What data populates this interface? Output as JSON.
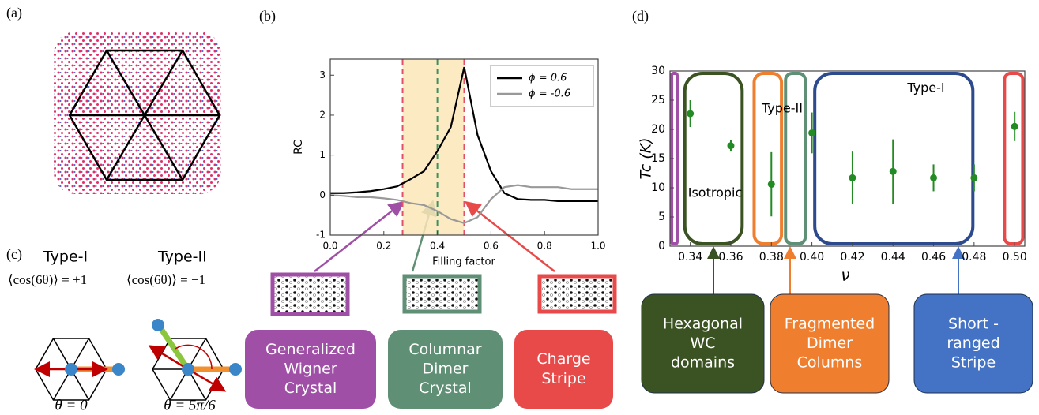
{
  "panel_labels": [
    "(a)",
    "(b)",
    "(c)",
    "(d)"
  ],
  "panel_c": {
    "type_1": "Type-I",
    "type_2": "Type-II",
    "eq_1": "⟨cos(6θ)⟩ = +1",
    "eq_2": "⟨cos(6θ)⟩ = −1",
    "theta_1": "θ = 0",
    "theta_2": "θ = 5π/6"
  },
  "phase_boxes_b": [
    {
      "lines": [
        "Generalized",
        "Wigner",
        "Crystal"
      ],
      "color": "#a04fa6"
    },
    {
      "lines": [
        "Columnar",
        "Dimer",
        "Crystal"
      ],
      "color": "#5f8f74"
    },
    {
      "lines": [
        "Charge",
        "Stripe"
      ],
      "color": "#e84a4a"
    }
  ],
  "phase_boxes_d": [
    {
      "lines": [
        "Hexagonal",
        "WC",
        "domains"
      ],
      "color": "#3b5323"
    },
    {
      "lines": [
        "Fragmented",
        "Dimer",
        "Columns"
      ],
      "color": "#ef7f2e"
    },
    {
      "lines": [
        "Short -",
        "ranged",
        "Stripe"
      ],
      "color": "#4472c4"
    }
  ],
  "region_labels": [
    "Isotropic",
    "Type-II",
    "Type-I"
  ],
  "chart_data": [
    {
      "type": "line",
      "xlabel": "Filling factor",
      "ylabel": "RC",
      "x": [
        0,
        0.05,
        0.1,
        0.15,
        0.2,
        0.25,
        0.3,
        0.35,
        0.4,
        0.45,
        0.5,
        0.55,
        0.6,
        0.65,
        0.7,
        0.75,
        0.8,
        0.85,
        0.9,
        0.95,
        1
      ],
      "series": [
        {
          "name": "ϕ = 0.6",
          "color": "#000000",
          "values": [
            0.05,
            0.05,
            0.07,
            0.1,
            0.15,
            0.22,
            0.4,
            0.6,
            1.1,
            1.7,
            3.2,
            1.5,
            0.6,
            0.05,
            -0.1,
            -0.12,
            -0.12,
            -0.15,
            -0.15,
            -0.15,
            -0.15
          ]
        },
        {
          "name": "ϕ = -0.6",
          "color": "#999999",
          "values": [
            0,
            -0.02,
            -0.05,
            -0.05,
            -0.08,
            -0.12,
            -0.2,
            -0.25,
            -0.4,
            -0.6,
            -0.7,
            -0.55,
            -0.1,
            0.2,
            0.25,
            0.2,
            0.2,
            0.2,
            0.15,
            0.15,
            0.15
          ]
        }
      ],
      "xlim": [
        0,
        1
      ],
      "ylim": [
        -1,
        3.4
      ],
      "xticks": [
        {
          "value": 0,
          "label": "0.0"
        },
        0.2,
        0.4,
        0.6,
        0.8,
        {
          "value": 1,
          "label": "1.0"
        }
      ],
      "yticks": [
        -1,
        0,
        1,
        2,
        3
      ],
      "legend": "upper right",
      "highlight": {
        "xrange": [
          0.27,
          0.5
        ],
        "color": "#fbe6b8"
      },
      "markers": [
        {
          "x": 0.27,
          "color": "#e0506a"
        },
        {
          "x": 0.4,
          "color": "#3f8f5f"
        },
        {
          "x": 0.5,
          "color": "#e0506a"
        }
      ]
    },
    {
      "type": "scatter",
      "xlabel": "ν",
      "ylabel": "Tc (K)",
      "color": "#238b23",
      "x": [
        0.34,
        0.36,
        0.38,
        0.4,
        0.42,
        0.44,
        0.46,
        0.48,
        0.5
      ],
      "values": [
        22.7,
        17.2,
        10.6,
        19.4,
        11.7,
        12.8,
        11.7,
        11.7,
        20.5
      ],
      "errors": [
        2.3,
        1,
        5.5,
        3.5,
        4.5,
        5.5,
        2.3,
        2.3,
        2.5
      ],
      "xlim": [
        0.33,
        0.505
      ],
      "ylim": [
        0,
        30
      ],
      "xticks": [
        0.34,
        0.36,
        0.38,
        {
          "value": 0.4,
          "label": "0.40"
        },
        0.42,
        0.44,
        0.46,
        0.48,
        {
          "value": 0.5,
          "label": "0.50"
        }
      ],
      "yticks": [
        0,
        5,
        10,
        15,
        20,
        25,
        30
      ],
      "regions": [
        {
          "xrange": [
            0.3308,
            0.3335
          ],
          "color": "#a04fa6"
        },
        {
          "xrange": [
            0.3373,
            0.3656
          ],
          "color": "#3b5323"
        },
        {
          "xrange": [
            0.3715,
            0.385
          ],
          "color": "#ef7f2e"
        },
        {
          "xrange": [
            0.387,
            0.3967
          ],
          "color": "#5f8f74"
        },
        {
          "xrange": [
            0.4014,
            0.4794
          ],
          "color": "#2c4a8c"
        },
        {
          "xrange": [
            0.495,
            0.504
          ],
          "color": "#e84a4a"
        }
      ]
    }
  ]
}
